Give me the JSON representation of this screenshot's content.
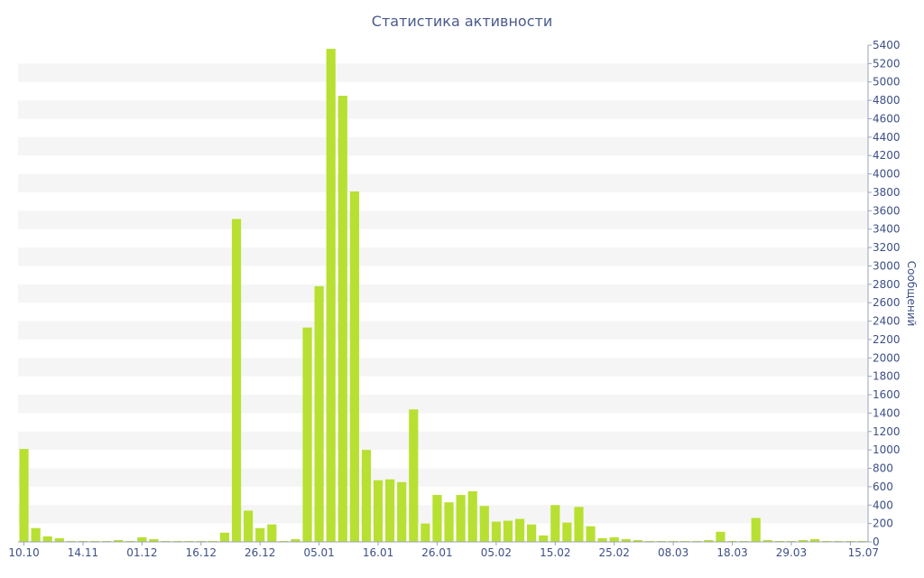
{
  "chart_data": {
    "type": "bar",
    "title": "Статистика активности",
    "ylabel": "Сообщений",
    "xlabel": "",
    "ylim": [
      0,
      5400
    ],
    "y_axis_position": "right",
    "y_ticks": [
      0,
      200,
      400,
      600,
      800,
      1000,
      1200,
      1400,
      1600,
      1800,
      2000,
      2200,
      2400,
      2600,
      2800,
      3000,
      3200,
      3400,
      3600,
      3800,
      4000,
      4200,
      4400,
      4600,
      4800,
      5000,
      5200,
      5400
    ],
    "x_tick_labels": [
      "10.10",
      "14.11",
      "01.12",
      "16.12",
      "26.12",
      "05.01",
      "16.01",
      "26.01",
      "05.02",
      "15.02",
      "25.02",
      "08.03",
      "18.03",
      "29.03",
      "15.07"
    ],
    "x_tick_label_bar_index": [
      0,
      5,
      10,
      15,
      20,
      25,
      30,
      35,
      40,
      45,
      50,
      55,
      60,
      65,
      70
    ],
    "grid": "alternating horizontal bands",
    "bar_color": "#b8e032",
    "band_color": "#f5f5f5",
    "text_color": "#3d4f86",
    "values": [
      1010,
      150,
      60,
      40,
      10,
      10,
      10,
      10,
      20,
      10,
      50,
      30,
      10,
      10,
      10,
      10,
      10,
      100,
      3510,
      340,
      150,
      190,
      10,
      30,
      2330,
      2780,
      5360,
      4850,
      3810,
      1000,
      670,
      680,
      650,
      1440,
      200,
      510,
      430,
      510,
      550,
      390,
      220,
      230,
      250,
      190,
      70,
      400,
      210,
      380,
      170,
      40,
      50,
      30,
      20,
      10,
      10,
      10,
      10,
      10,
      20,
      110,
      10,
      10,
      260,
      20,
      10,
      10,
      20,
      30,
      10,
      10,
      10,
      10
    ]
  }
}
